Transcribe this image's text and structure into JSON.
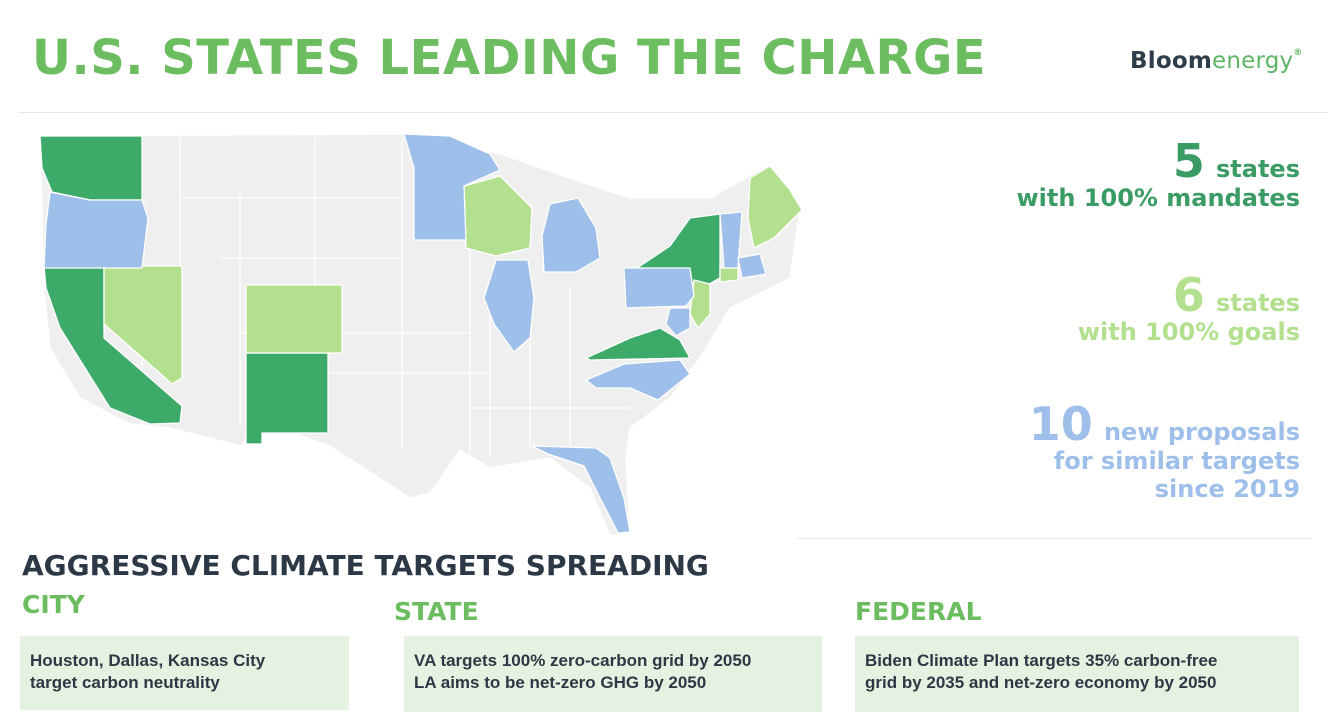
{
  "header": {
    "title": "U.S. STATES LEADING THE CHARGE",
    "logo_part1": "Bloom",
    "logo_part2": "energy",
    "logo_mark": "®"
  },
  "map": {
    "colors": {
      "mandate": "#3eaa6a",
      "goal": "#b2e08e",
      "proposal": "#9dbfe9",
      "none": "#efefef"
    },
    "states_100_percent_mandate": [
      "WA",
      "CA",
      "NM",
      "NY",
      "VA"
    ],
    "states_100_percent_goal": [
      "NV",
      "CO",
      "WI",
      "ME",
      "NJ",
      "CT"
    ],
    "states_new_proposals": [
      "OR",
      "MN",
      "IL",
      "MI",
      "PA",
      "NC",
      "FL",
      "VT",
      "MA",
      "MD"
    ]
  },
  "stats": [
    {
      "number": "5",
      "word": "states",
      "line2": "with 100% mandates",
      "line3": "",
      "color": "#3a9c64"
    },
    {
      "number": "6",
      "word": "states",
      "line2": "with 100% goals",
      "line3": "",
      "color": "#b2e08e"
    },
    {
      "number": "10",
      "word": "new proposals",
      "line2": "for similar targets",
      "line3": "since 2019",
      "color": "#9dbfe9"
    }
  ],
  "targets": {
    "heading": "AGGRESSIVE CLIMATE TARGETS SPREADING",
    "city": {
      "label": "CITY",
      "lines": [
        "Houston, Dallas, Kansas City",
        "target carbon neutrality"
      ]
    },
    "state": {
      "label": "STATE",
      "lines": [
        "VA targets 100% zero-carbon grid by 2050",
        "LA aims to be net-zero GHG by 2050"
      ]
    },
    "federal": {
      "label": "FEDERAL",
      "lines": [
        "Biden Climate Plan targets 35% carbon-free",
        "grid by 2035 and net-zero economy by 2050"
      ]
    }
  }
}
